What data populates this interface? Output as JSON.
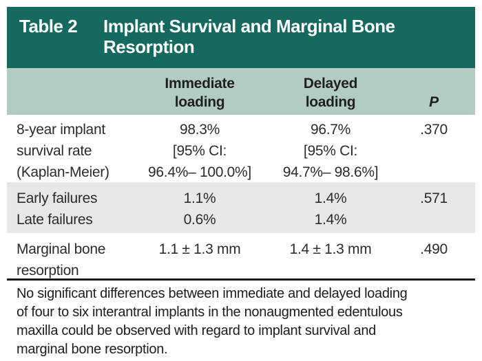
{
  "colors": {
    "title_bar_bg": "#15695e",
    "title_text": "#ffffff",
    "column_header_bg": "#b2cbc5",
    "stripe_row_bg": "#e8e8e8",
    "rule": "#1a1a1a",
    "body_text": "#2b2b2b"
  },
  "title_bar": {
    "tag": "Table 2",
    "title": "Implant Survival and Marginal Bone Resorption",
    "title_lines": [
      "Implant Survival and Marginal Bone",
      "Resorption"
    ]
  },
  "column_headers": {
    "immediate_lines": [
      "Immediate",
      "loading"
    ],
    "delayed_lines": [
      "Delayed",
      "loading"
    ],
    "p": "P"
  },
  "rows": [
    {
      "label_lines": [
        "8-year implant",
        "survival rate",
        "(Kaplan-Meier)"
      ],
      "immediate_lines": [
        "98.3%",
        "[95% CI:",
        "96.4%– 100.0%]"
      ],
      "delayed_lines": [
        "96.7%",
        "[95% CI:",
        "94.7%– 98.6%]"
      ],
      "p": ".370"
    },
    {
      "label_lines": [
        "Early failures",
        "Late failures"
      ],
      "immediate_lines": [
        "1.1%",
        "0.6%"
      ],
      "delayed_lines": [
        "1.4%",
        "1.4%"
      ],
      "p": ".571"
    },
    {
      "label_lines": [
        "Marginal bone",
        "resorption"
      ],
      "immediate_lines": [
        "1.1 ± 1.3 mm"
      ],
      "delayed_lines": [
        "1.4 ± 1.3 mm"
      ],
      "p": ".490"
    }
  ],
  "footnote": {
    "text": "No significant differences between immediate and delayed loading of four to six interantral implants in the nonaugmented edentulous maxilla could be observed with regard to implant survival and marginal bone resorption.",
    "lines": [
      "No significant differences between immediate and delayed loading",
      "of four to six interantral implants in the nonaugmented edentulous",
      "maxilla could be observed with regard to implant survival and",
      "marginal bone resorption."
    ]
  }
}
